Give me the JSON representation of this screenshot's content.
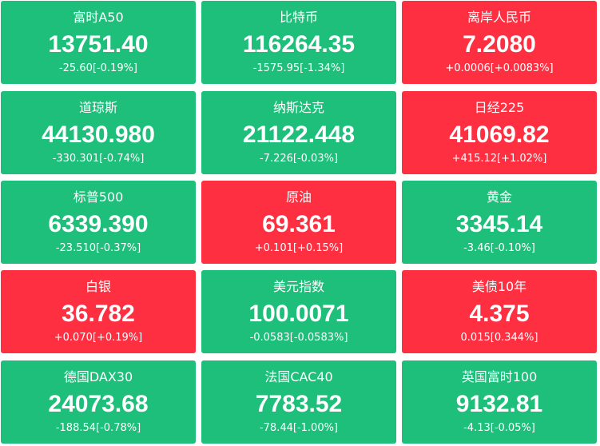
{
  "tiles": [
    {
      "name": "富时A50",
      "price": "13751.40",
      "change": "-25.60[-0.19%]",
      "color": "#1dbf7a"
    },
    {
      "name": "比特币",
      "price": "116264.35",
      "change": "-1575.95[-1.34%]",
      "color": "#1dbf7a"
    },
    {
      "name": "离岸人民币",
      "price": "7.2080",
      "change": "+0.0006[+0.0083%]",
      "color": "#fe2f40"
    },
    {
      "name": "道琼斯",
      "price": "44130.980",
      "change": "-330.301[-0.74%]",
      "color": "#1dbf7a"
    },
    {
      "name": "纳斯达克",
      "price": "21122.448",
      "change": "-7.226[-0.03%]",
      "color": "#1dbf7a"
    },
    {
      "name": "日经225",
      "price": "41069.82",
      "change": "+415.12[+1.02%]",
      "color": "#fe2f40"
    },
    {
      "name": "标普500",
      "price": "6339.390",
      "change": "-23.510[-0.37%]",
      "color": "#1dbf7a"
    },
    {
      "name": "原油",
      "price": "69.361",
      "change": "+0.101[+0.15%]",
      "color": "#fe2f40"
    },
    {
      "name": "黄金",
      "price": "3345.14",
      "change": "-3.46[-0.10%]",
      "color": "#1dbf7a"
    },
    {
      "name": "白银",
      "price": "36.782",
      "change": "+0.070[+0.19%]",
      "color": "#fe2f40"
    },
    {
      "name": "美元指数",
      "price": "100.0071",
      "change": "-0.0583[-0.0583%]",
      "color": "#1dbf7a"
    },
    {
      "name": "美债10年",
      "price": "4.375",
      "change": "0.015[0.344%]",
      "color": "#fe2f40"
    },
    {
      "name": "德国DAX30",
      "price": "24073.68",
      "change": "-188.54[-0.78%]",
      "color": "#1dbf7a"
    },
    {
      "name": "法国CAC40",
      "price": "7783.52",
      "change": "-78.44[-1.00%]",
      "color": "#1dbf7a"
    },
    {
      "name": "英国富时100",
      "price": "9132.81",
      "change": "-4.13[-0.05%]",
      "color": "#1dbf7a"
    }
  ]
}
